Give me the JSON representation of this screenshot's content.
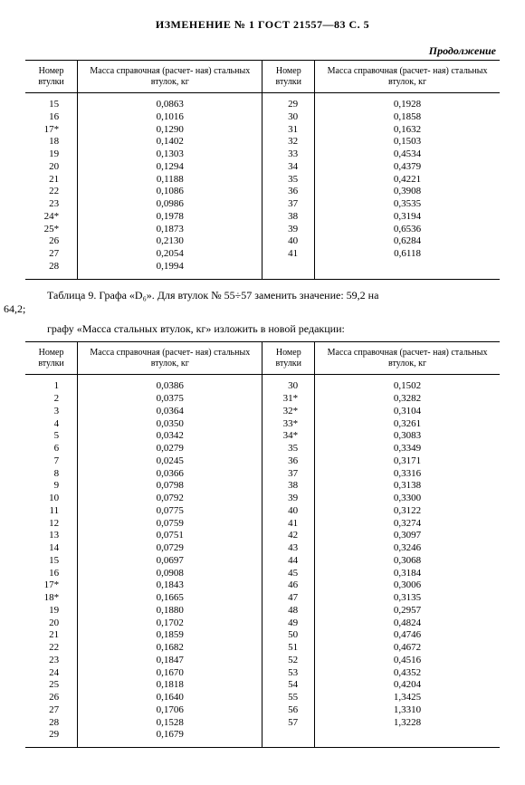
{
  "title": "ИЗМЕНЕНИЕ № 1 ГОСТ 21557—83   С. 5",
  "continuation": "Продолжение",
  "headers": {
    "nomer": "Номер\nвтулки",
    "massa": "Масса справочная (расчет-\nная) стальных втулок, кг"
  },
  "table1": {
    "left": [
      [
        "15",
        "0,0863"
      ],
      [
        "16",
        "0,1016"
      ],
      [
        "17*",
        "0,1290"
      ],
      [
        "18",
        "0,1402"
      ],
      [
        "19",
        "0,1303"
      ],
      [
        "20",
        "0,1294"
      ],
      [
        "21",
        "0,1188"
      ],
      [
        "22",
        "0,1086"
      ],
      [
        "23",
        "0,0986"
      ],
      [
        "24*",
        "0,1978"
      ],
      [
        "25*",
        "0,1873"
      ],
      [
        "26",
        "0,2130"
      ],
      [
        "27",
        "0,2054"
      ],
      [
        "28",
        "0,1994"
      ]
    ],
    "right": [
      [
        "29",
        "0,1928"
      ],
      [
        "30",
        "0,1858"
      ],
      [
        "31",
        "0,1632"
      ],
      [
        "32",
        "0,1503"
      ],
      [
        "33",
        "0,4534"
      ],
      [
        "34",
        "0,4379"
      ],
      [
        "35",
        "0,4221"
      ],
      [
        "36",
        "0,3908"
      ],
      [
        "37",
        "0,3535"
      ],
      [
        "38",
        "0,3194"
      ],
      [
        "39",
        "0,6536"
      ],
      [
        "40",
        "0,6284"
      ],
      [
        "41",
        "0,6118"
      ],
      [
        "",
        ""
      ]
    ]
  },
  "mid1_a": "Таблица 9. Графа «D₆». Для втулок № 55÷57 заменить  значение:  59,2 на",
  "mid1_b": "64,2;",
  "mid2": "графу «Масса стальных втулок, кг» изложить в новой редакции:",
  "table2": {
    "left": [
      [
        "1",
        "0,0386"
      ],
      [
        "2",
        "0,0375"
      ],
      [
        "3",
        "0,0364"
      ],
      [
        "4",
        "0,0350"
      ],
      [
        "5",
        "0,0342"
      ],
      [
        "6",
        "0,0279"
      ],
      [
        "7",
        "0,0245"
      ],
      [
        "8",
        "0,0366"
      ],
      [
        "9",
        "0,0798"
      ],
      [
        "10",
        "0,0792"
      ],
      [
        "11",
        "0,0775"
      ],
      [
        "12",
        "0,0759"
      ],
      [
        "13",
        "0,0751"
      ],
      [
        "14",
        "0,0729"
      ],
      [
        "15",
        "0,0697"
      ],
      [
        "16",
        "0,0908"
      ],
      [
        "17*",
        "0,1843"
      ],
      [
        "18*",
        "0,1665"
      ],
      [
        "19",
        "0,1880"
      ],
      [
        "20",
        "0,1702"
      ],
      [
        "21",
        "0,1859"
      ],
      [
        "22",
        "0,1682"
      ],
      [
        "23",
        "0,1847"
      ],
      [
        "24",
        "0,1670"
      ],
      [
        "25",
        "0,1818"
      ],
      [
        "26",
        "0,1640"
      ],
      [
        "27",
        "0,1706"
      ],
      [
        "28",
        "0,1528"
      ],
      [
        "29",
        "0,1679"
      ]
    ],
    "right": [
      [
        "30",
        "0,1502"
      ],
      [
        "31*",
        "0,3282"
      ],
      [
        "32*",
        "0,3104"
      ],
      [
        "33*",
        "0,3261"
      ],
      [
        "34*",
        "0,3083"
      ],
      [
        "35",
        "0,3349"
      ],
      [
        "36",
        "0,3171"
      ],
      [
        "37",
        "0,3316"
      ],
      [
        "38",
        "0,3138"
      ],
      [
        "39",
        "0,3300"
      ],
      [
        "40",
        "0,3122"
      ],
      [
        "41",
        "0,3274"
      ],
      [
        "42",
        "0,3097"
      ],
      [
        "43",
        "0,3246"
      ],
      [
        "44",
        "0,3068"
      ],
      [
        "45",
        "0,3184"
      ],
      [
        "46",
        "0,3006"
      ],
      [
        "47",
        "0,3135"
      ],
      [
        "48",
        "0,2957"
      ],
      [
        "49",
        "0,4824"
      ],
      [
        "50",
        "0,4746"
      ],
      [
        "51",
        "0,4672"
      ],
      [
        "52",
        "0,4516"
      ],
      [
        "53",
        "0,4352"
      ],
      [
        "54",
        "0,4204"
      ],
      [
        "55",
        "1,3425"
      ],
      [
        "56",
        "1,3310"
      ],
      [
        "57",
        "1,3228"
      ],
      [
        "",
        ""
      ]
    ]
  }
}
